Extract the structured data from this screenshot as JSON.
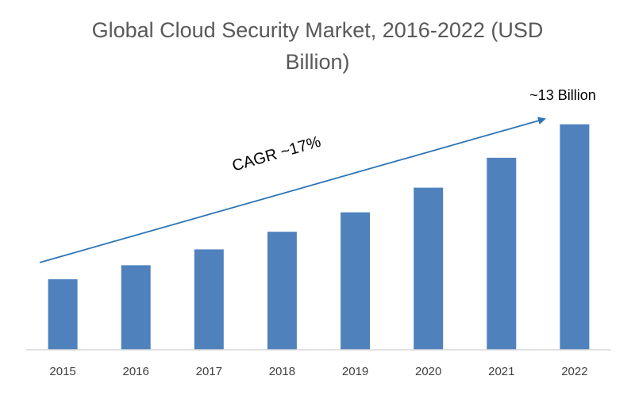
{
  "chart_data": {
    "type": "bar",
    "title_line1": "Global Cloud Security Market, 2016-2022 (USD",
    "title_line2": "Billion)",
    "categories": [
      "2015",
      "2016",
      "2017",
      "2018",
      "2019",
      "2020",
      "2021",
      "2022"
    ],
    "values": [
      4.0,
      4.8,
      5.7,
      6.7,
      7.8,
      9.2,
      10.9,
      12.8
    ],
    "xlabel": "",
    "ylabel": "",
    "ylim": [
      0,
      14
    ],
    "grid": false,
    "legend": "none",
    "bar_color": "#4f81bd",
    "annotations": {
      "end_value": "~13 Billion",
      "cagr": "CAGR ~17%"
    },
    "arrow_color": "#2e75b6"
  }
}
